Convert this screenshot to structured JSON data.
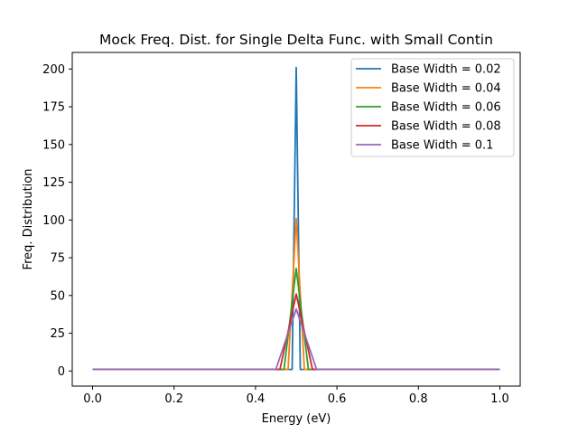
{
  "chart_data": {
    "type": "line",
    "title": "Mock Freq. Dist. for Single Delta Func. with Small Contin",
    "xlabel": "Energy (eV)",
    "ylabel": "Freq. Distribution",
    "xlim": [
      -0.05,
      1.05
    ],
    "ylim": [
      -10,
      211
    ],
    "xticks": [
      0.0,
      0.2,
      0.4,
      0.6,
      0.8,
      1.0
    ],
    "xtick_labels": [
      "0.0",
      "0.2",
      "0.4",
      "0.6",
      "0.8",
      "1.0"
    ],
    "yticks": [
      0,
      25,
      50,
      75,
      100,
      125,
      150,
      175,
      200
    ],
    "ytick_labels": [
      "0",
      "25",
      "50",
      "75",
      "100",
      "125",
      "150",
      "175",
      "200"
    ],
    "grid": false,
    "legend_position": "top-right",
    "series": [
      {
        "name": "Base Width = 0.02",
        "color": "#1f77b4",
        "x": [
          0.0,
          0.49,
          0.5,
          0.51,
          1.0
        ],
        "y": [
          1,
          1,
          201,
          1,
          1
        ]
      },
      {
        "name": "Base Width = 0.04",
        "color": "#ff7f0e",
        "x": [
          0.0,
          0.48,
          0.5,
          0.52,
          1.0
        ],
        "y": [
          1,
          1,
          101,
          1,
          1
        ]
      },
      {
        "name": "Base Width = 0.06",
        "color": "#2ca02c",
        "x": [
          0.0,
          0.47,
          0.5,
          0.53,
          1.0
        ],
        "y": [
          1,
          1,
          68,
          1,
          1
        ]
      },
      {
        "name": "Base Width = 0.08",
        "color": "#d62728",
        "x": [
          0.0,
          0.46,
          0.5,
          0.54,
          1.0
        ],
        "y": [
          1,
          1,
          51,
          1,
          1
        ]
      },
      {
        "name": "Base Width = 0.1",
        "color": "#9467bd",
        "x": [
          0.0,
          0.45,
          0.5,
          0.55,
          1.0
        ],
        "y": [
          1,
          1,
          41,
          1,
          1
        ]
      }
    ]
  }
}
